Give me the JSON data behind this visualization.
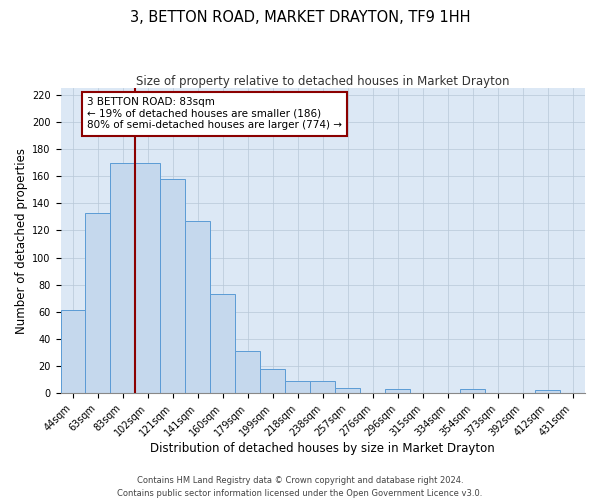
{
  "title": "3, BETTON ROAD, MARKET DRAYTON, TF9 1HH",
  "subtitle": "Size of property relative to detached houses in Market Drayton",
  "xlabel": "Distribution of detached houses by size in Market Drayton",
  "ylabel": "Number of detached properties",
  "footer_line1": "Contains HM Land Registry data © Crown copyright and database right 2024.",
  "footer_line2": "Contains public sector information licensed under the Open Government Licence v3.0.",
  "bin_labels": [
    "44sqm",
    "63sqm",
    "83sqm",
    "102sqm",
    "121sqm",
    "141sqm",
    "160sqm",
    "179sqm",
    "199sqm",
    "218sqm",
    "238sqm",
    "257sqm",
    "276sqm",
    "296sqm",
    "315sqm",
    "334sqm",
    "354sqm",
    "373sqm",
    "392sqm",
    "412sqm",
    "431sqm"
  ],
  "bar_heights": [
    61,
    133,
    170,
    170,
    158,
    127,
    73,
    31,
    18,
    9,
    9,
    4,
    0,
    3,
    0,
    0,
    3,
    0,
    0,
    2,
    0
  ],
  "bar_color": "#c5d8ed",
  "bar_edge_color": "#5b9bd5",
  "highlight_line_color": "#8b0000",
  "annotation_box_text": "3 BETTON ROAD: 83sqm\n← 19% of detached houses are smaller (186)\n80% of semi-detached houses are larger (774) →",
  "annotation_box_edge_color": "#8b0000",
  "ylim": [
    0,
    225
  ],
  "yticks": [
    0,
    20,
    40,
    60,
    80,
    100,
    120,
    140,
    160,
    180,
    200,
    220
  ],
  "ax_facecolor": "#dce8f5",
  "background_color": "#ffffff",
  "grid_color": "#b8c8d8",
  "title_fontsize": 10.5,
  "subtitle_fontsize": 8.5,
  "axis_label_fontsize": 8.5,
  "tick_fontsize": 7,
  "annotation_fontsize": 7.5,
  "footer_fontsize": 6
}
